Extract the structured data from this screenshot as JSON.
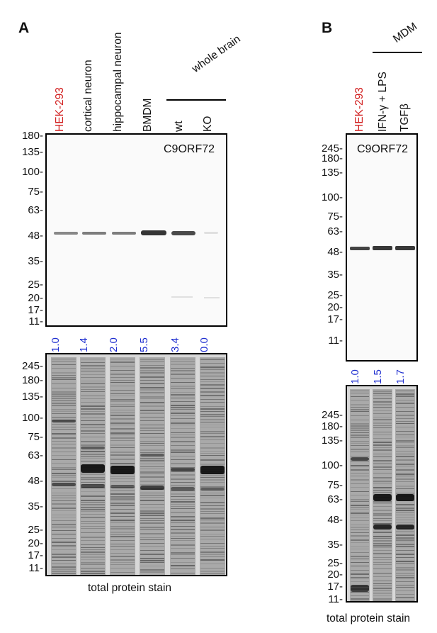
{
  "panel_a": {
    "letter": "A",
    "group_label": "whole brain",
    "lanes": [
      {
        "label": "HEK-293",
        "color": "#d22020"
      },
      {
        "label": "cortical neuron",
        "color": "#111111"
      },
      {
        "label": "hippocampal neuron",
        "color": "#111111"
      },
      {
        "label": "BMDM",
        "color": "#111111"
      },
      {
        "label": "wt",
        "color": "#111111"
      },
      {
        "label": "KO",
        "color": "#111111"
      }
    ],
    "blot_title": "C9ORF72",
    "blot_markers": [
      "180-",
      "135-",
      "100-",
      "75-",
      "63-",
      "48-",
      "35-",
      "25-",
      "20-",
      "17-",
      "11-"
    ],
    "quant": [
      "1.0",
      "1.4",
      "2.0",
      "5.5",
      "3.4",
      "0.0"
    ],
    "stain_markers": [
      "245-",
      "180-",
      "135-",
      "100-",
      "75-",
      "63-",
      "48-",
      "35-",
      "25-",
      "20-",
      "17-",
      "11-"
    ],
    "caption": "total protein stain"
  },
  "panel_b": {
    "letter": "B",
    "group_label": "MDM",
    "lanes": [
      {
        "label": "HEK-293",
        "color": "#d22020"
      },
      {
        "label": "IFN-γ + LPS",
        "color": "#111111"
      },
      {
        "label": "TGFβ",
        "color": "#111111"
      }
    ],
    "blot_title": "C9ORF72",
    "blot_markers": [
      "245-",
      "180-",
      "135-",
      "100-",
      "75-",
      "63-",
      "48-",
      "35-",
      "25-",
      "20-",
      "17-",
      "11-"
    ],
    "quant": [
      "1.0",
      "1.5",
      "1.7"
    ],
    "stain_markers": [
      "245-",
      "180-",
      "135-",
      "100-",
      "75-",
      "63-",
      "48-",
      "35-",
      "25-",
      "20-",
      "17-",
      "11-"
    ],
    "caption": "total protein stain"
  }
}
